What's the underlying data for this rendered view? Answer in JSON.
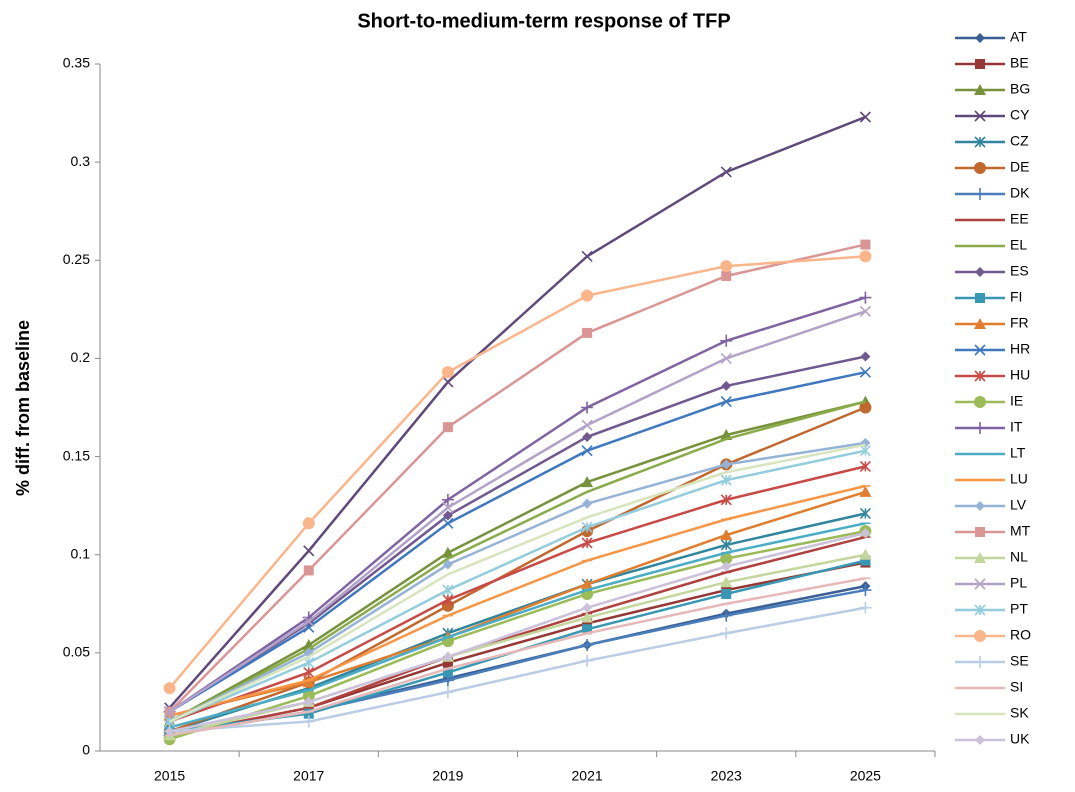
{
  "chart_data": {
    "type": "line",
    "title": "Short-to-medium-term response of TFP",
    "y_label": "% diff. from baseline",
    "categories": [
      "2015",
      "2017",
      "2019",
      "2021",
      "2023",
      "2025"
    ],
    "ylim": [
      0,
      0.35
    ],
    "yticks": [
      0,
      0.05,
      0.1,
      0.15,
      0.2,
      0.25,
      0.3,
      0.35
    ],
    "legend": "right",
    "series": [
      {
        "name": "AT",
        "color": "#3a5f94",
        "marker": "diamond",
        "values": [
          0.008,
          0.02,
          0.037,
          0.054,
          0.07,
          0.084
        ]
      },
      {
        "name": "BE",
        "color": "#953735",
        "marker": "square",
        "values": [
          0.008,
          0.022,
          0.045,
          0.065,
          0.082,
          0.096
        ]
      },
      {
        "name": "BG",
        "color": "#76923c",
        "marker": "triangle",
        "values": [
          0.015,
          0.054,
          0.101,
          0.137,
          0.161,
          0.178
        ]
      },
      {
        "name": "CY",
        "color": "#5f497a",
        "marker": "x",
        "values": [
          0.022,
          0.102,
          0.188,
          0.252,
          0.295,
          0.323
        ]
      },
      {
        "name": "CZ",
        "color": "#31859c",
        "marker": "star",
        "values": [
          0.01,
          0.032,
          0.06,
          0.085,
          0.105,
          0.121
        ]
      },
      {
        "name": "DE",
        "color": "#c0682e",
        "marker": "circle",
        "values": [
          0.01,
          0.035,
          0.074,
          0.112,
          0.146,
          0.175
        ]
      },
      {
        "name": "DK",
        "color": "#4a7ebb",
        "marker": "plus",
        "values": [
          0.008,
          0.02,
          0.036,
          0.054,
          0.069,
          0.082
        ]
      },
      {
        "name": "EE",
        "color": "#b0413e",
        "marker": "dash",
        "values": [
          0.008,
          0.022,
          0.048,
          0.07,
          0.091,
          0.109
        ]
      },
      {
        "name": "EL",
        "color": "#8aab4a",
        "marker": "none",
        "values": [
          0.015,
          0.052,
          0.098,
          0.132,
          0.159,
          0.178
        ]
      },
      {
        "name": "ES",
        "color": "#71588f",
        "marker": "diamond",
        "values": [
          0.02,
          0.065,
          0.12,
          0.16,
          0.186,
          0.201
        ]
      },
      {
        "name": "FI",
        "color": "#3898b3",
        "marker": "square",
        "values": [
          0.01,
          0.019,
          0.04,
          0.062,
          0.08,
          0.097
        ]
      },
      {
        "name": "FR",
        "color": "#e07d2e",
        "marker": "triangle",
        "values": [
          0.018,
          0.035,
          0.058,
          0.085,
          0.11,
          0.132
        ]
      },
      {
        "name": "HR",
        "color": "#3f78be",
        "marker": "x",
        "values": [
          0.02,
          0.063,
          0.116,
          0.153,
          0.178,
          0.193
        ]
      },
      {
        "name": "HU",
        "color": "#c84a47",
        "marker": "star",
        "values": [
          0.015,
          0.04,
          0.077,
          0.106,
          0.128,
          0.145
        ]
      },
      {
        "name": "IE",
        "color": "#9bbb59",
        "marker": "circle",
        "values": [
          0.006,
          0.028,
          0.056,
          0.08,
          0.098,
          0.112
        ]
      },
      {
        "name": "IT",
        "color": "#8064a2",
        "marker": "plus",
        "values": [
          0.02,
          0.068,
          0.128,
          0.175,
          0.209,
          0.231
        ]
      },
      {
        "name": "LT",
        "color": "#4bacc6",
        "marker": "dash",
        "values": [
          0.012,
          0.031,
          0.058,
          0.082,
          0.101,
          0.116
        ]
      },
      {
        "name": "LU",
        "color": "#f79646",
        "marker": "dash",
        "values": [
          0.018,
          0.036,
          0.069,
          0.097,
          0.118,
          0.135
        ]
      },
      {
        "name": "LV",
        "color": "#95b3d7",
        "marker": "diamond",
        "values": [
          0.015,
          0.05,
          0.095,
          0.126,
          0.146,
          0.157
        ]
      },
      {
        "name": "MT",
        "color": "#d99694",
        "marker": "square",
        "values": [
          0.02,
          0.092,
          0.165,
          0.213,
          0.242,
          0.258
        ]
      },
      {
        "name": "NL",
        "color": "#c3d69b",
        "marker": "triangle",
        "values": [
          0.008,
          0.025,
          0.048,
          0.068,
          0.086,
          0.1
        ]
      },
      {
        "name": "PL",
        "color": "#b3a2c7",
        "marker": "x",
        "values": [
          0.02,
          0.066,
          0.124,
          0.166,
          0.2,
          0.224
        ]
      },
      {
        "name": "PT",
        "color": "#93cddd",
        "marker": "star",
        "values": [
          0.015,
          0.045,
          0.082,
          0.114,
          0.138,
          0.153
        ]
      },
      {
        "name": "RO",
        "color": "#fab68a",
        "marker": "circle",
        "values": [
          0.032,
          0.116,
          0.193,
          0.232,
          0.247,
          0.252
        ]
      },
      {
        "name": "SE",
        "color": "#b9cde5",
        "marker": "plus",
        "values": [
          0.01,
          0.015,
          0.03,
          0.046,
          0.06,
          0.073
        ]
      },
      {
        "name": "SI",
        "color": "#e6b9b8",
        "marker": "dash",
        "values": [
          0.008,
          0.02,
          0.042,
          0.06,
          0.075,
          0.088
        ]
      },
      {
        "name": "SK",
        "color": "#d7e4bd",
        "marker": "none",
        "values": [
          0.015,
          0.048,
          0.09,
          0.119,
          0.142,
          0.156
        ]
      },
      {
        "name": "UK",
        "color": "#ccc1da",
        "marker": "diamond",
        "values": [
          0.01,
          0.025,
          0.048,
          0.073,
          0.094,
          0.111
        ]
      }
    ]
  }
}
